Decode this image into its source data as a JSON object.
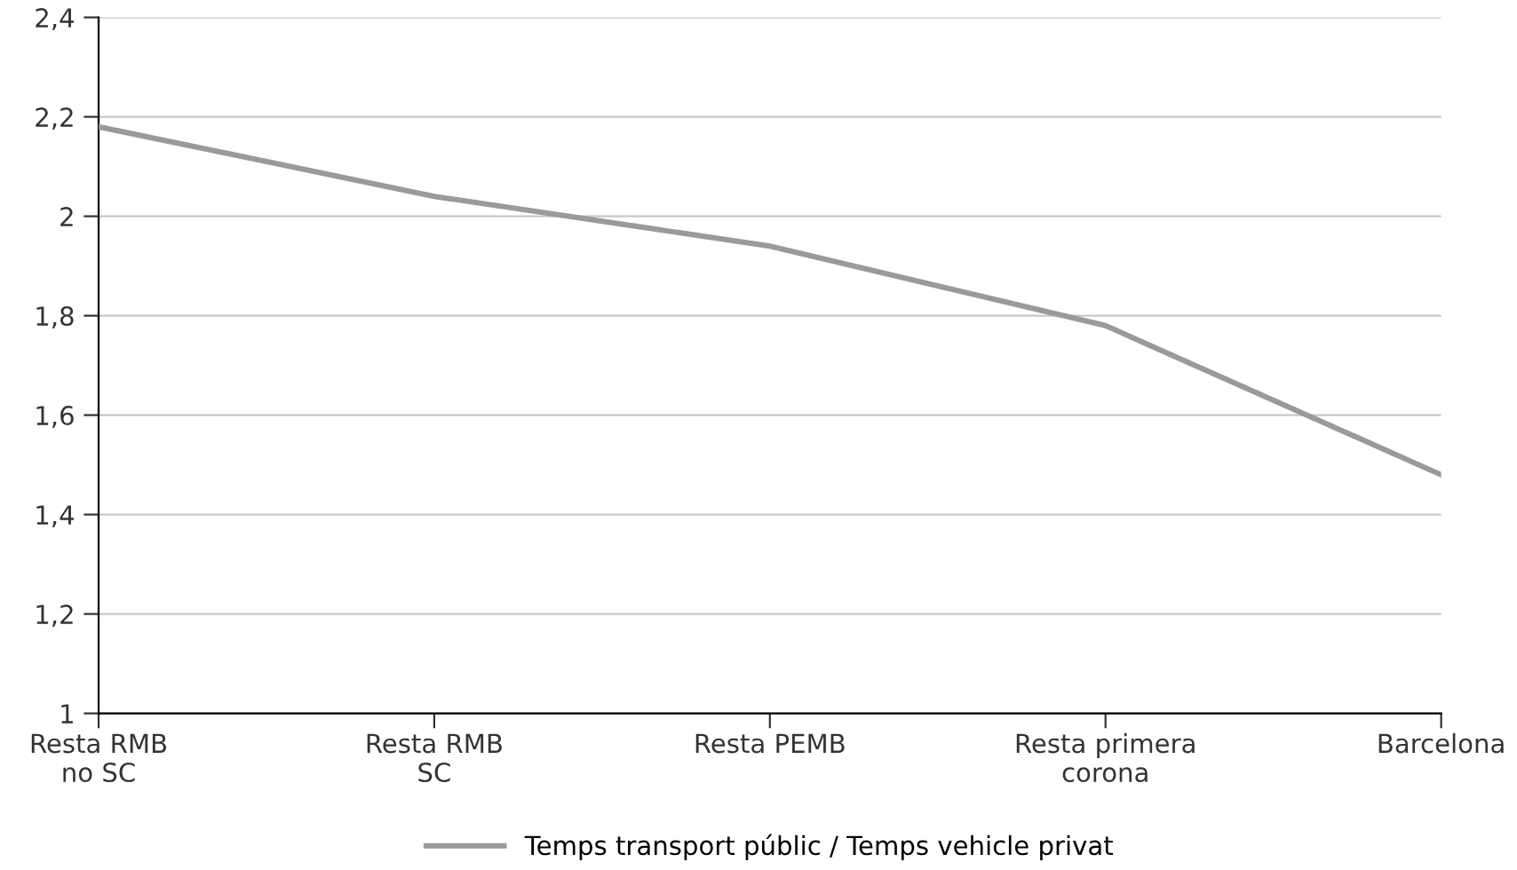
{
  "chart_data": {
    "type": "line",
    "categories": [
      "Resta RMB\nno SC",
      "Resta RMB\nSC",
      "Resta PEMB",
      "Resta primera\ncorona",
      "Barcelona"
    ],
    "series": [
      {
        "name": "Temps transport públic / Temps vehicle privat",
        "color": "#9a9a9a",
        "values": [
          2.18,
          2.04,
          1.94,
          1.78,
          1.48
        ]
      }
    ],
    "ylim": [
      1,
      2.4
    ],
    "yticks": [
      {
        "value": 1,
        "label": "1"
      },
      {
        "value": 1.2,
        "label": "1,2"
      },
      {
        "value": 1.4,
        "label": "1,4"
      },
      {
        "value": 1.6,
        "label": "1,6"
      },
      {
        "value": 1.8,
        "label": "1,8"
      },
      {
        "value": 2,
        "label": "2"
      },
      {
        "value": 2.2,
        "label": "2,2"
      },
      {
        "value": 2.4,
        "label": "2,4"
      }
    ],
    "grid": "y",
    "legend": "bottom",
    "marker": "none",
    "line_style": "solid"
  }
}
